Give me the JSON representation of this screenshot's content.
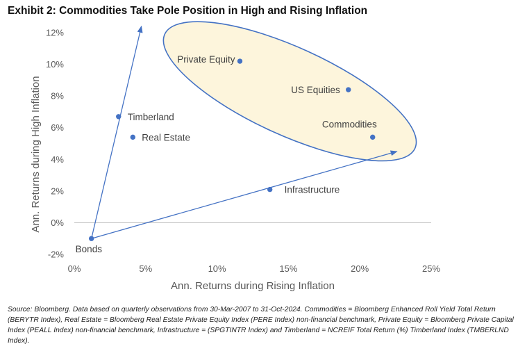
{
  "title": "Exhibit 2: Commodities Take Pole Position in High and Rising Inflation",
  "chart_data": {
    "type": "scatter",
    "title": "Exhibit 2: Commodities Take Pole Position in High and Rising Inflation",
    "xlabel": "Ann. Returns during Rising Inflation",
    "ylabel": "Ann. Returns during High Inflation",
    "xlim": [
      0,
      25
    ],
    "ylim": [
      -2,
      12
    ],
    "x_ticks": [
      0,
      5,
      10,
      15,
      20,
      25
    ],
    "x_tick_labels": [
      "0%",
      "5%",
      "10%",
      "15%",
      "20%",
      "25%"
    ],
    "y_ticks": [
      -2,
      0,
      2,
      4,
      6,
      8,
      10,
      12
    ],
    "y_tick_labels": [
      "-2%",
      "0%",
      "2%",
      "4%",
      "6%",
      "8%",
      "10%",
      "12%"
    ],
    "grid": false,
    "points": [
      {
        "name": "Bonds",
        "x": 1.2,
        "y": -1.0
      },
      {
        "name": "Timberland",
        "x": 3.1,
        "y": 6.7
      },
      {
        "name": "Real Estate",
        "x": 4.1,
        "y": 5.4
      },
      {
        "name": "Private Equity",
        "x": 11.6,
        "y": 10.2
      },
      {
        "name": "US Equities",
        "x": 19.2,
        "y": 8.4
      },
      {
        "name": "Commodities",
        "x": 20.9,
        "y": 5.4
      },
      {
        "name": "Infrastructure",
        "x": 13.7,
        "y": 2.1
      }
    ],
    "annotations": {
      "arrows": [
        {
          "from": [
            1.2,
            -1.0
          ],
          "to": [
            4.7,
            12.4
          ]
        },
        {
          "from": [
            1.2,
            -1.0
          ],
          "to": [
            22.6,
            4.5
          ]
        }
      ],
      "highlight_ellipse": {
        "center": [
          15.1,
          8.3
        ],
        "contains": [
          "Private Equity",
          "US Equities",
          "Commodities"
        ]
      }
    },
    "colors": {
      "marker": "#4472C4",
      "arrow": "#4472C4",
      "ellipse_stroke": "#4472C4",
      "ellipse_fill": "#FDF5DC",
      "axis": "#BFBFBF"
    }
  },
  "source_text": "Source: Bloomberg. Data based on quarterly observations from 30-Mar-2007 to 31-Oct-2024. Commodities = Bloomberg Enhanced Roll Yield Total Return (BERYTR Index), Real Estate = Bloomberg Real Estate Private Equity Index (PERE Index) non-financial benchmark, Private Equity = Bloomberg Private Capital Index (PEALL Index) non-financial benchmark, Infrastructure = (SPGTINTR Index) and Timberland = NCREIF Total Return (%) Timberland Index (TMBERLND Index)."
}
